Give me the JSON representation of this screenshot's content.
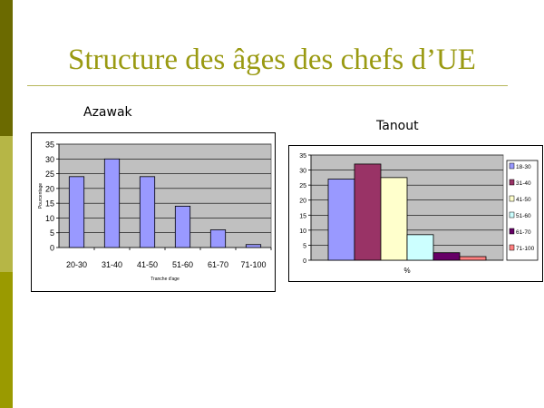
{
  "slide": {
    "title": "Structure des âges des chefs d’UE",
    "accent_colors": [
      "#6b6a00",
      "#b6b646",
      "#9a9a00"
    ],
    "title_color": "#9a9a12"
  },
  "chart_data": [
    {
      "type": "bar",
      "caption": "Azawak",
      "categories": [
        "20-30",
        "31-40",
        "41-50",
        "51-60",
        "61-70",
        "71-100"
      ],
      "series": [
        {
          "values": [
            24,
            30,
            24,
            14,
            6,
            1
          ],
          "color": "#9999ff"
        }
      ],
      "xlabel": "Tranche d'age",
      "ylabel": "Pourcentage",
      "ylim": [
        0,
        35
      ],
      "yticks": [
        0,
        5,
        10,
        15,
        20,
        25,
        30,
        35
      ],
      "grid": true,
      "plot_background": "#c0c0c0",
      "legend": "none"
    },
    {
      "type": "bar",
      "caption": "Tanout",
      "categories": [
        "%"
      ],
      "series": [
        {
          "name": "18-30",
          "values": [
            27
          ],
          "color": "#9999ff"
        },
        {
          "name": "31-40",
          "values": [
            32
          ],
          "color": "#993366"
        },
        {
          "name": "41-50",
          "values": [
            27.5
          ],
          "color": "#ffffcc"
        },
        {
          "name": "51-60",
          "values": [
            8.5
          ],
          "color": "#ccffff"
        },
        {
          "name": "61-70",
          "values": [
            2.5
          ],
          "color": "#660066"
        },
        {
          "name": "71-100",
          "values": [
            1.2
          ],
          "color": "#ff8080"
        }
      ],
      "xlabel": "",
      "ylabel": "",
      "ylim": [
        0,
        35
      ],
      "yticks": [
        0,
        5,
        10,
        15,
        20,
        25,
        30,
        35
      ],
      "grid": true,
      "plot_background": "#c0c0c0",
      "legend": "right"
    }
  ]
}
